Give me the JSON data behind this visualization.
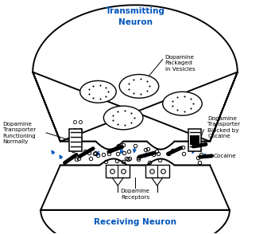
{
  "title_top": "Transmitting\nNeuron",
  "title_bottom": "Receiving Neuron",
  "label_left": "Dopamine\nTransporter\nFunctioning\nNormally",
  "label_right": "Dopamine\nTransporter\nBlocked by\nCocaine",
  "label_vesicles": "Dopamine\nPackaged\nin Vesicles",
  "label_receptors": "Dopamine\nReceptors",
  "label_cocaine": "Cocaine",
  "blue": "#0055BB",
  "black": "#000000",
  "white": "#FFFFFF"
}
